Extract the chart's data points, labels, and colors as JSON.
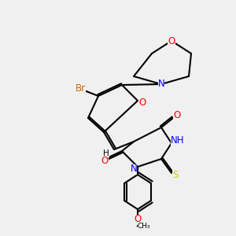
{
  "background_color": "#f0f0f0",
  "atom_colors": {
    "C": "#000000",
    "N": "#0000ff",
    "O": "#ff0000",
    "S": "#cccc00",
    "Br": "#cc6600",
    "H": "#000000"
  },
  "title": "",
  "figsize": [
    3.0,
    3.0
  ],
  "dpi": 100
}
